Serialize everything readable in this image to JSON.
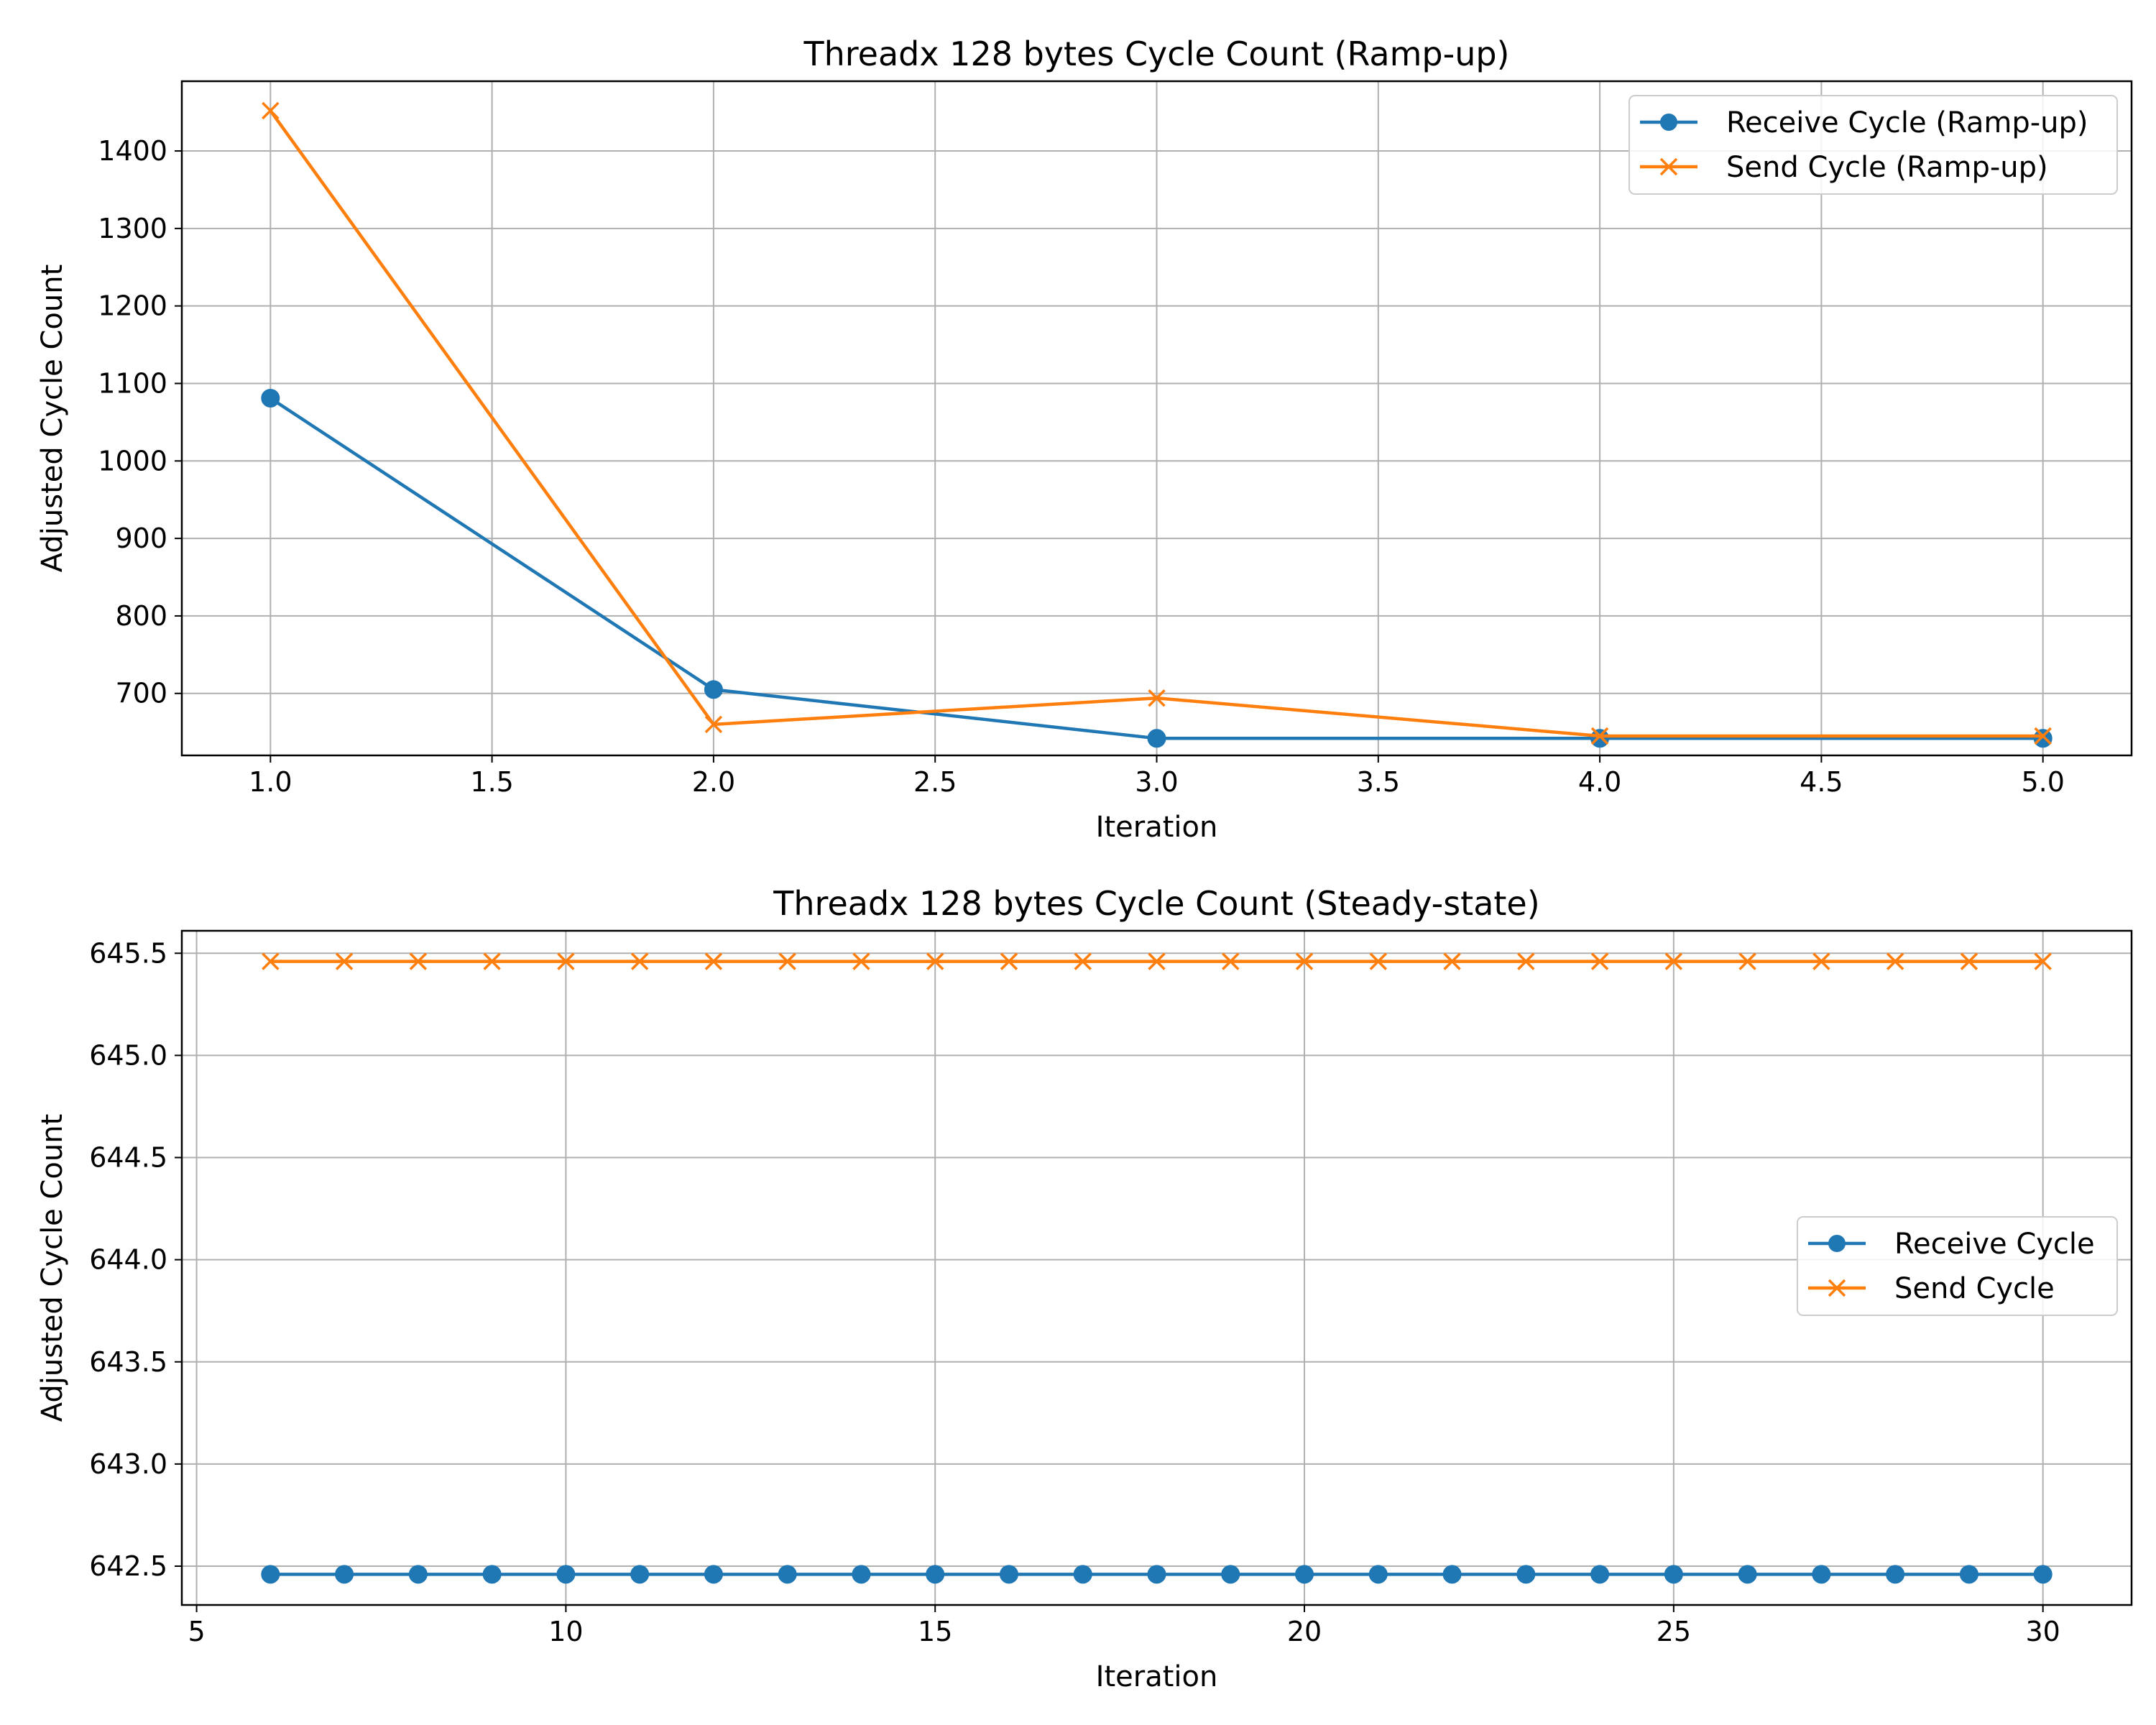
{
  "chart_data": [
    {
      "type": "line",
      "title": "Threadx 128 bytes Cycle Count (Ramp-up)",
      "xlabel": "Iteration",
      "ylabel": "Adjusted Cycle Count",
      "xlim": [
        0.8,
        5.2
      ],
      "ylim": [
        620,
        1490
      ],
      "xticks": [
        1.0,
        1.5,
        2.0,
        2.5,
        3.0,
        3.5,
        4.0,
        4.5,
        5.0
      ],
      "xtick_labels": [
        "1.0",
        "1.5",
        "2.0",
        "2.5",
        "3.0",
        "3.5",
        "4.0",
        "4.5",
        "5.0"
      ],
      "yticks": [
        700,
        800,
        900,
        1000,
        1100,
        1200,
        1300,
        1400
      ],
      "ytick_labels": [
        "700",
        "800",
        "900",
        "1000",
        "1100",
        "1200",
        "1300",
        "1400"
      ],
      "grid": true,
      "legend_position": "top-right",
      "x": [
        1,
        2,
        3,
        4,
        5
      ],
      "series": [
        {
          "name": "Receive Cycle (Ramp-up)",
          "marker": "circle",
          "color": "#1f77b4",
          "values": [
            1081,
            705,
            642,
            642,
            642
          ]
        },
        {
          "name": "Send Cycle (Ramp-up)",
          "marker": "x",
          "color": "#ff7f0e",
          "values": [
            1452,
            660,
            694,
            645,
            645
          ]
        }
      ]
    },
    {
      "type": "line",
      "title": "Threadx 128 bytes Cycle Count (Steady-state)",
      "xlabel": "Iteration",
      "ylabel": "Adjusted Cycle Count",
      "xlim": [
        4.8,
        31.2
      ],
      "ylim": [
        642.31,
        645.61
      ],
      "xticks": [
        5,
        10,
        15,
        20,
        25,
        30
      ],
      "xtick_labels": [
        "5",
        "10",
        "15",
        "20",
        "25",
        "30"
      ],
      "yticks": [
        642.5,
        643.0,
        643.5,
        644.0,
        644.5,
        645.0,
        645.5
      ],
      "ytick_labels": [
        "642.5",
        "643.0",
        "643.5",
        "644.0",
        "644.5",
        "645.0",
        "645.5"
      ],
      "grid": true,
      "legend_position": "center-right",
      "x": [
        6,
        7,
        8,
        9,
        10,
        11,
        12,
        13,
        14,
        15,
        16,
        17,
        18,
        19,
        20,
        21,
        22,
        23,
        24,
        25,
        26,
        27,
        28,
        29,
        30
      ],
      "series": [
        {
          "name": "Receive Cycle",
          "marker": "circle",
          "color": "#1f77b4",
          "values": [
            642.46,
            642.46,
            642.46,
            642.46,
            642.46,
            642.46,
            642.46,
            642.46,
            642.46,
            642.46,
            642.46,
            642.46,
            642.46,
            642.46,
            642.46,
            642.46,
            642.46,
            642.46,
            642.46,
            642.46,
            642.46,
            642.46,
            642.46,
            642.46,
            642.46
          ]
        },
        {
          "name": "Send Cycle",
          "marker": "x",
          "color": "#ff7f0e",
          "values": [
            645.46,
            645.46,
            645.46,
            645.46,
            645.46,
            645.46,
            645.46,
            645.46,
            645.46,
            645.46,
            645.46,
            645.46,
            645.46,
            645.46,
            645.46,
            645.46,
            645.46,
            645.46,
            645.46,
            645.46,
            645.46,
            645.46,
            645.46,
            645.46,
            645.46
          ]
        }
      ]
    }
  ]
}
